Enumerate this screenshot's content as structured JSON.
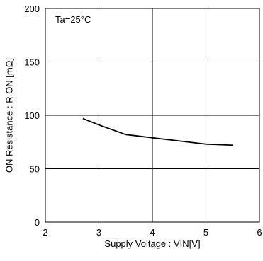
{
  "chart_data": {
    "type": "line",
    "title": "",
    "xlabel": "Supply Voltage : VIN[V]",
    "ylabel": "ON Resistance : R ON [mΩ]",
    "xlim": [
      2,
      6
    ],
    "ylim": [
      0,
      200
    ],
    "x_ticks": [
      2,
      3,
      4,
      5,
      6
    ],
    "y_ticks": [
      0,
      50,
      100,
      150,
      200
    ],
    "x_tick_labels": [
      "2",
      "3",
      "4",
      "5",
      "6"
    ],
    "y_tick_labels": [
      "0",
      "50",
      "100",
      "150",
      "200"
    ],
    "grid": true,
    "annotation": "Ta=25°C",
    "series": [
      {
        "color": "#000000",
        "x": [
          2.7,
          3.0,
          3.5,
          4.0,
          4.5,
          5.0,
          5.5
        ],
        "y": [
          97,
          91,
          82,
          79,
          76,
          73,
          72
        ]
      }
    ]
  }
}
